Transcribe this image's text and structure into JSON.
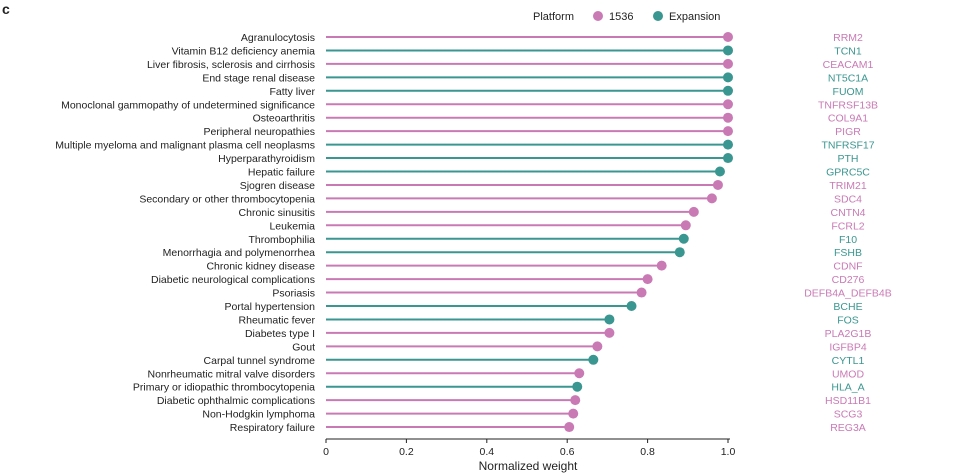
{
  "panel_label": "c",
  "colors": {
    "1536": "#c97ab5",
    "Expansion": "#3a9690",
    "axis": "#222222",
    "text": "#222222"
  },
  "chart_data": {
    "type": "lollipop",
    "legend": {
      "title": "Platform",
      "entries": [
        "1536",
        "Expansion"
      ],
      "placement": "top"
    },
    "xlabel": "Normalized weight",
    "xlim": [
      0,
      1.0
    ],
    "xticks": [
      "0",
      "0.2",
      "0.4",
      "0.6",
      "0.8",
      "1.0"
    ],
    "xtick_values": [
      0,
      0.2,
      0.4,
      0.6,
      0.8,
      1.0
    ],
    "rows": [
      {
        "disease": "Agranulocytosis",
        "protein": "RRM2",
        "platform": "1536",
        "value": 1.0
      },
      {
        "disease": "Vitamin B12 deficiency anemia",
        "protein": "TCN1",
        "platform": "Expansion",
        "value": 1.0
      },
      {
        "disease": "Liver fibrosis, sclerosis and cirrhosis",
        "protein": "CEACAM1",
        "platform": "1536",
        "value": 1.0
      },
      {
        "disease": "End stage renal disease",
        "protein": "NT5C1A",
        "platform": "Expansion",
        "value": 1.0
      },
      {
        "disease": "Fatty liver",
        "protein": "FUOM",
        "platform": "Expansion",
        "value": 1.0
      },
      {
        "disease": "Monoclonal gammopathy of undetermined significance",
        "protein": "TNFRSF13B",
        "platform": "1536",
        "value": 1.0
      },
      {
        "disease": "Osteoarthritis",
        "protein": "COL9A1",
        "platform": "1536",
        "value": 1.0
      },
      {
        "disease": "Peripheral neuropathies",
        "protein": "PIGR",
        "platform": "1536",
        "value": 1.0
      },
      {
        "disease": "Multiple myeloma and malignant plasma cell neoplasms",
        "protein": "TNFRSF17",
        "platform": "Expansion",
        "value": 1.0
      },
      {
        "disease": "Hyperparathyroidism",
        "protein": "PTH",
        "platform": "Expansion",
        "value": 1.0
      },
      {
        "disease": "Hepatic failure",
        "protein": "GPRC5C",
        "platform": "Expansion",
        "value": 0.98
      },
      {
        "disease": "Sjogren disease",
        "protein": "TRIM21",
        "platform": "1536",
        "value": 0.975
      },
      {
        "disease": "Secondary or other thrombocytopenia",
        "protein": "SDC4",
        "platform": "1536",
        "value": 0.96
      },
      {
        "disease": "Chronic sinusitis",
        "protein": "CNTN4",
        "platform": "1536",
        "value": 0.915
      },
      {
        "disease": "Leukemia",
        "protein": "FCRL2",
        "platform": "1536",
        "value": 0.895
      },
      {
        "disease": "Thrombophilia",
        "protein": "F10",
        "platform": "Expansion",
        "value": 0.89
      },
      {
        "disease": "Menorrhagia and polymenorrhea",
        "protein": "FSHB",
        "platform": "Expansion",
        "value": 0.88
      },
      {
        "disease": "Chronic kidney disease",
        "protein": "CDNF",
        "platform": "1536",
        "value": 0.835
      },
      {
        "disease": "Diabetic neurological complications",
        "protein": "CD276",
        "platform": "1536",
        "value": 0.8
      },
      {
        "disease": "Psoriasis",
        "protein": "DEFB4A_DEFB4B",
        "platform": "1536",
        "value": 0.785
      },
      {
        "disease": "Portal hypertension",
        "protein": "BCHE",
        "platform": "Expansion",
        "value": 0.76
      },
      {
        "disease": "Rheumatic fever",
        "protein": "FOS",
        "platform": "Expansion",
        "value": 0.705
      },
      {
        "disease": "Diabetes type I",
        "protein": "PLA2G1B",
        "platform": "1536",
        "value": 0.705
      },
      {
        "disease": "Gout",
        "protein": "IGFBP4",
        "platform": "1536",
        "value": 0.675
      },
      {
        "disease": "Carpal tunnel syndrome",
        "protein": "CYTL1",
        "platform": "Expansion",
        "value": 0.665
      },
      {
        "disease": "Nonrheumatic mitral valve disorders",
        "protein": "UMOD",
        "platform": "1536",
        "value": 0.63
      },
      {
        "disease": "Primary or idiopathic thrombocytopenia",
        "protein": "HLA_A",
        "platform": "Expansion",
        "value": 0.625
      },
      {
        "disease": "Diabetic ophthalmic complications",
        "protein": "HSD11B1",
        "platform": "1536",
        "value": 0.62
      },
      {
        "disease": "Non-Hodgkin lymphoma",
        "protein": "SCG3",
        "platform": "1536",
        "value": 0.615
      },
      {
        "disease": "Respiratory failure",
        "protein": "REG3A",
        "platform": "1536",
        "value": 0.605
      }
    ]
  }
}
